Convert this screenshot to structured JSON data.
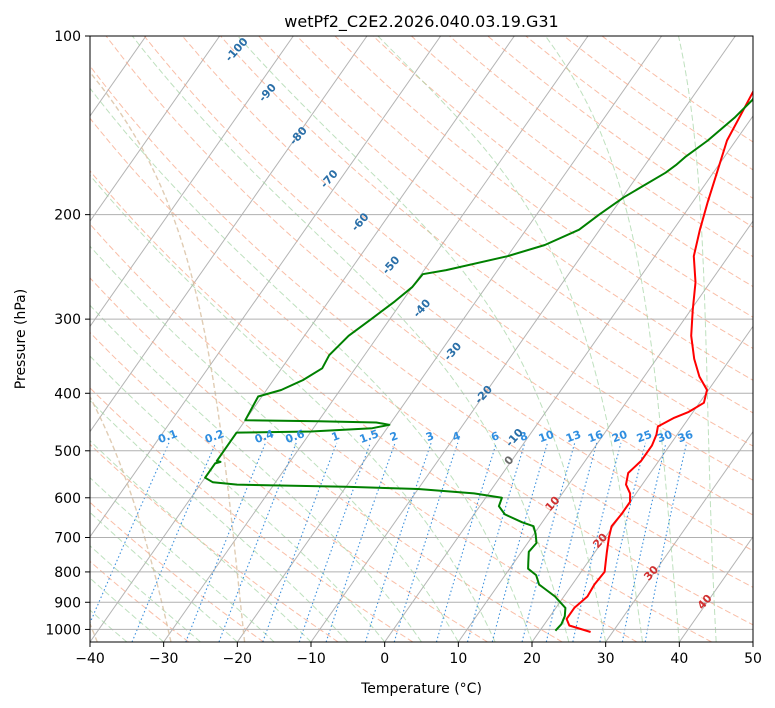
{
  "chart_data": {
    "type": "line",
    "title": "wetPf2_C2E2.2026.040.03.19.G31",
    "xlabel": "Temperature (°C)",
    "ylabel": "Pressure (hPa)",
    "xlim": [
      -40,
      50
    ],
    "ylim": [
      1050,
      100
    ],
    "y_scale": "log",
    "grid": true,
    "x_ticks": [
      -40,
      -30,
      -20,
      -10,
      0,
      10,
      20,
      30,
      40,
      50
    ],
    "x_tick_labels": [
      "−40",
      "−30",
      "−20",
      "−10",
      "0",
      "10",
      "20",
      "30",
      "40",
      "50"
    ],
    "y_ticks": [
      100,
      200,
      300,
      400,
      500,
      600,
      700,
      800,
      900,
      1000
    ],
    "y_tick_labels": [
      "100",
      "200",
      "300",
      "400",
      "500",
      "600",
      "700",
      "800",
      "900",
      "1000"
    ],
    "series": [
      {
        "name": "temperature",
        "color": "#ff0000",
        "points": [
          [
            27.0,
            1010
          ],
          [
            23.5,
            985
          ],
          [
            22.5,
            960
          ],
          [
            22.5,
            920
          ],
          [
            23.2,
            880
          ],
          [
            23.0,
            840
          ],
          [
            23.2,
            800
          ],
          [
            22.4,
            770
          ],
          [
            21.6,
            740
          ],
          [
            20.5,
            700
          ],
          [
            19.8,
            670
          ],
          [
            20.0,
            640
          ],
          [
            20.0,
            610
          ],
          [
            19.2,
            590
          ],
          [
            17.8,
            570
          ],
          [
            17.0,
            545
          ],
          [
            17.6,
            520
          ],
          [
            17.6,
            490
          ],
          [
            17.2,
            470
          ],
          [
            16.6,
            455
          ],
          [
            18.0,
            440
          ],
          [
            19.4,
            430
          ],
          [
            20.6,
            415
          ],
          [
            19.8,
            395
          ],
          [
            17.5,
            375
          ],
          [
            15.1,
            350
          ],
          [
            12.5,
            320
          ],
          [
            10.3,
            290
          ],
          [
            8.0,
            260
          ],
          [
            5.3,
            235
          ],
          [
            3.6,
            212
          ],
          [
            2.0,
            190
          ],
          [
            0.5,
            170
          ],
          [
            -1.2,
            150
          ],
          [
            -1.8,
            135
          ],
          [
            -2.5,
            120
          ],
          [
            -1.8,
            108
          ],
          [
            0.6,
            103
          ],
          [
            5.0,
            100
          ]
        ]
      },
      {
        "name": "dewpoint",
        "color": "#008000",
        "points": [
          [
            22.1,
            1005
          ],
          [
            22.3,
            980
          ],
          [
            22.0,
            950
          ],
          [
            21.3,
            920
          ],
          [
            18.8,
            880
          ],
          [
            15.5,
            840
          ],
          [
            14.2,
            810
          ],
          [
            12.5,
            790
          ],
          [
            11.9,
            770
          ],
          [
            11.0,
            740
          ],
          [
            11.2,
            715
          ],
          [
            10.2,
            690
          ],
          [
            9.2,
            670
          ],
          [
            7.3,
            660
          ],
          [
            4.2,
            640
          ],
          [
            2.6,
            620
          ],
          [
            2.2,
            600
          ],
          [
            -2.0,
            590
          ],
          [
            -10.0,
            580
          ],
          [
            -20.0,
            575
          ],
          [
            -35.0,
            570
          ],
          [
            -38.5,
            565
          ],
          [
            -40.0,
            555
          ],
          [
            -40.0,
            525
          ],
          [
            -39.4,
            522
          ],
          [
            -40.0,
            520
          ],
          [
            -40.0,
            466
          ],
          [
            -30.0,
            464
          ],
          [
            -22.0,
            458
          ],
          [
            -20.0,
            452
          ],
          [
            -22.0,
            448
          ],
          [
            -30.0,
            446
          ],
          [
            -40.0,
            444
          ],
          [
            -40.5,
            405
          ],
          [
            -38.0,
            395
          ],
          [
            -36.0,
            380
          ],
          [
            -34.5,
            363
          ],
          [
            -34.8,
            345
          ],
          [
            -34.0,
            320
          ],
          [
            -32.5,
            300
          ],
          [
            -31.0,
            280
          ],
          [
            -30.0,
            265
          ],
          [
            -29.8,
            252
          ],
          [
            -27.0,
            248
          ],
          [
            -20.0,
            235
          ],
          [
            -16.0,
            225
          ],
          [
            -12.8,
            212
          ],
          [
            -11.5,
            200
          ],
          [
            -9.8,
            187
          ],
          [
            -6.5,
            170
          ],
          [
            -5.8,
            165
          ],
          [
            -5.3,
            160
          ],
          [
            -3.8,
            150
          ],
          [
            -2.3,
            137
          ],
          [
            -1.6,
            128
          ],
          [
            -2.2,
            120
          ],
          [
            -2.0,
            112
          ],
          [
            -1.4,
            108
          ],
          [
            0,
            104
          ],
          [
            0.2,
            100
          ]
        ]
      }
    ],
    "isotherm_labels": [
      "-100",
      "-90",
      "-80",
      "-70",
      "-60",
      "-50",
      "-40",
      "-30",
      "-20",
      "-10",
      "0",
      "10",
      "20",
      "30",
      "40"
    ],
    "mixing_ratio_labels": [
      "0.1",
      "0.2",
      "0.4",
      "0.6",
      "1",
      "1.5",
      "2",
      "3",
      "4",
      "6",
      "8",
      "10",
      "13",
      "16",
      "20",
      "25",
      "30",
      "36"
    ]
  }
}
